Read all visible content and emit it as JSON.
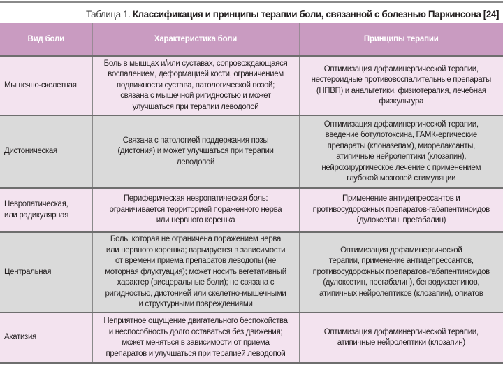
{
  "caption": {
    "label": "Таблица 1.",
    "title": "Классификация и принципы терапии боли, связанной с болезнью Паркинсона [24]"
  },
  "colors": {
    "header": "#c99bc1",
    "row_pink": "#f3e3ef",
    "row_gray": "#dadada"
  },
  "table": {
    "headers": [
      "Вид боли",
      "Характеристика боли",
      "Принципы терапии"
    ],
    "rows": [
      {
        "type": "Мышечно-скелетная",
        "characteristic": "Боль в мышцах и/или суставах, сопровождающаяся\nвоспалением, деформацией кости, ограничением\nподвижности сустава, патологической позой;\nсвязана с мышечной ригидностью и может\nулучшаться при терапии леводопой",
        "therapy": "Оптимизация дофаминергической терапии,\nнестероидные противовоспалительные препараты\n(НПВП) и анальгетики, физиотерапия, лечебная\nфизкультура"
      },
      {
        "type": "Дистоническая",
        "characteristic": "Связана с патологией поддержания позы\n(дистония) и может улучшаться при терапии\nлеводопой",
        "therapy": "Оптимизация дофаминергической терапии,\nвведение ботулотоксина, ГАМК-ергические\nпрепараты (клоназепам), миорелаксанты,\nатипичные нейролептики (клозапин),\nнейрохирургическое лечение с применением\nглубокой мозговой стимуляции"
      },
      {
        "type": "Невропатическая,\nили радикулярная",
        "characteristic": "Периферическая невропатическая боль:\nограничивается территорией пораженного нерва\nили нервного корешка",
        "therapy": "Применение антидепрессантов и\nпротивосудорожных препаратов-габапентиноидов\n(дулоксетин, прегабалин)"
      },
      {
        "type": "Центральная",
        "characteristic": "Боль, которая не ограничена поражением нерва\nили нервного корешка; варьируется в зависимости\nот времени приема препаратов леводопы (не\nмоторная флуктуация); может носить вегетативный\nхарактер (висцеральные боли); не связана с\nригидностью, дистонией или скелетно-мышечными\nи структурными повреждениями",
        "therapy": "Оптимизация дофаминергической\nтерапии, применение антидепрессантов,\nпротивосудорожных препаратов-габапентиноидов\n(дулоксетин, прегабалин), бензодиазепинов,\nатипичных нейролептиков (клозапин), опиатов"
      },
      {
        "type": "Акатизия",
        "characteristic": "Неприятное ощущение двигательного беспокойства\nи неспособность долго оставаться без движения;\nможет меняться в зависимости от приема\nпрепаратов и улучшаться при терапией леводопой",
        "therapy": "Оптимизация дофаминергической терапии,\nатипичные нейролептики (клозапин)"
      }
    ]
  }
}
